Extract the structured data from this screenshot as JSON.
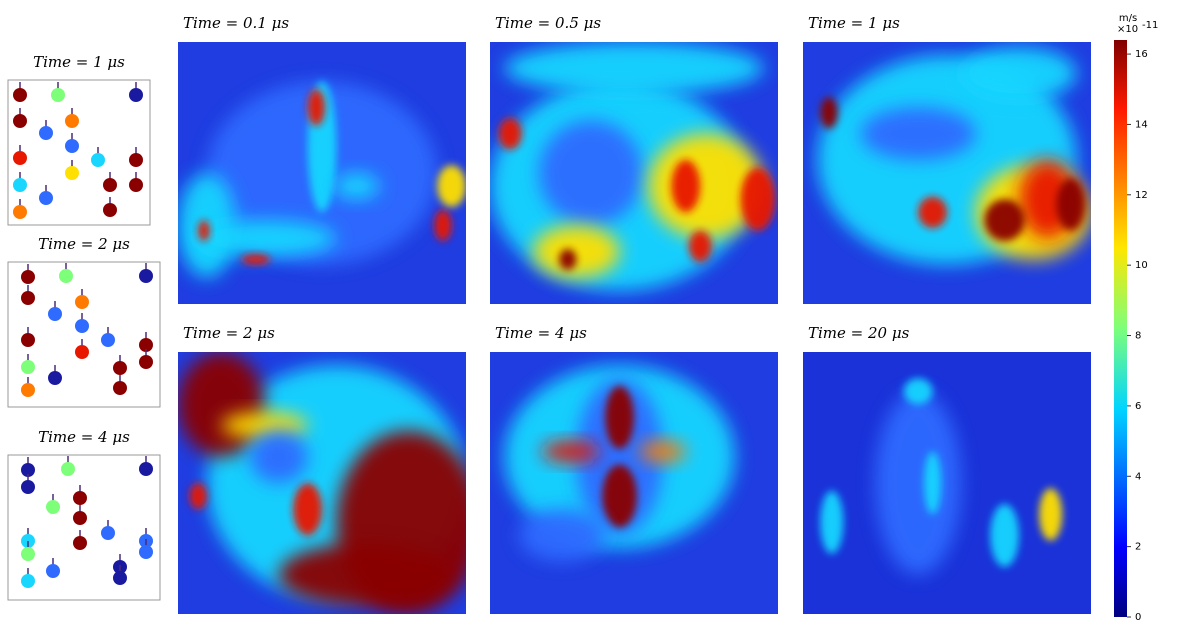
{
  "left_panels": [
    {
      "label": "Time = 1 μs"
    },
    {
      "label": "Time = 2 μs"
    },
    {
      "label": "Time = 4 μs"
    }
  ],
  "panels": [
    {
      "label": "Time = 0.1 μs"
    },
    {
      "label": "Time = 0.5 μs"
    },
    {
      "label": "Time = 1 μs"
    },
    {
      "label": "Time = 2 μs"
    },
    {
      "label": "Time = 4 μs"
    },
    {
      "label": "Time = 20 μs"
    }
  ],
  "colorbar": {
    "unit": "m/s",
    "multiplier": "×10",
    "exponent": "-11",
    "lim": [
      0,
      16.4
    ],
    "ticks": [
      0,
      2,
      4,
      6,
      8,
      10,
      12,
      14,
      16
    ]
  }
}
